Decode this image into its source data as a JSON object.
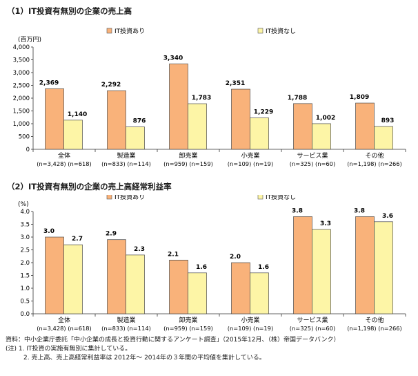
{
  "chart_data": [
    {
      "type": "bar",
      "title": "（1）IT投資有無別の企業の売上高",
      "ylabel": "(百万円)",
      "ylim": [
        0,
        4000
      ],
      "yticks": [
        "0",
        "500",
        "1,000",
        "1,500",
        "2,000",
        "2,500",
        "3,000",
        "3,500",
        "4,000"
      ],
      "categories": [
        "全体",
        "製造業",
        "卸売業",
        "小売業",
        "サービス業",
        "その他"
      ],
      "category_notes": [
        "(n=3,428) (n=618)",
        "(n=833) (n=114)",
        "(n=959) (n=159)",
        "(n=109) (n=19)",
        "(n=325) (n=60)",
        "(n=1,198) (n=266)"
      ],
      "legend_position": "top",
      "grid": false,
      "series": [
        {
          "name": "IT投資あり",
          "color": "#f9b27a",
          "values": [
            2369,
            2292,
            3340,
            2351,
            1788,
            1809
          ],
          "labels": [
            "2,369",
            "2,292",
            "3,340",
            "2,351",
            "1,788",
            "1,809"
          ]
        },
        {
          "name": "IT投資なし",
          "color": "#fdf5a6",
          "values": [
            1140,
            876,
            1783,
            1229,
            1002,
            893
          ],
          "labels": [
            "1,140",
            "876",
            "1,783",
            "1,229",
            "1,002",
            "893"
          ]
        }
      ]
    },
    {
      "type": "bar",
      "title": "（2）IT投資有無別の企業の売上高経常利益率",
      "ylabel": "(%)",
      "ylim": [
        0,
        4.0
      ],
      "yticks": [
        "0.0",
        "0.5",
        "1.0",
        "1.5",
        "2.0",
        "2.5",
        "3.0",
        "3.5",
        "4.0"
      ],
      "categories": [
        "全体",
        "製造業",
        "卸売業",
        "小売業",
        "サービス業",
        "その他"
      ],
      "category_notes": [
        "(n=3,428) (n=618)",
        "(n=833) (n=114)",
        "(n=959) (n=159)",
        "(n=109) (n=19)",
        "(n=325) (n=60)",
        "(n=1,198) (n=266)"
      ],
      "legend_position": "top",
      "grid": false,
      "series": [
        {
          "name": "IT投資あり",
          "color": "#f9b27a",
          "values": [
            3.0,
            2.9,
            2.1,
            2.0,
            3.8,
            3.8
          ],
          "labels": [
            "3.0",
            "2.9",
            "2.1",
            "2.0",
            "3.8",
            "3.8"
          ]
        },
        {
          "name": "IT投資なし",
          "color": "#fdf5a6",
          "values": [
            2.7,
            2.3,
            1.6,
            1.6,
            3.3,
            3.6
          ],
          "labels": [
            "2.7",
            "2.3",
            "1.6",
            "1.6",
            "3.3",
            "3.6"
          ]
        }
      ]
    }
  ],
  "notes": {
    "source": "資料：中小企業庁委託「中小企業の成長と投資行動に関するアンケート調査」（2015年12月、（株）帝国データバンク）",
    "note1": "(注) 1. IT投資の実施有無別に集計している。",
    "note2": "2. 売上高、売上高経常利益率は 2012年～ 2014年の３年間の平均値を集計している。"
  }
}
